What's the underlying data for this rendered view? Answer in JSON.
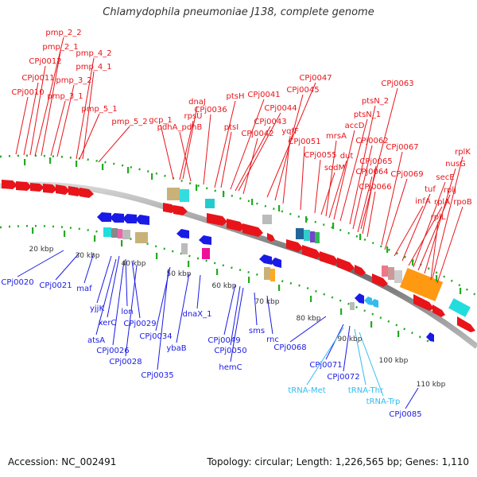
{
  "title": "Chlamydophila pneumoniae J138, complete genome",
  "footer": {
    "accession": "Accession: NC_002491",
    "summary": "Topology: circular; Length: 1,226,565 bp; Genes: 1,110"
  },
  "colors": {
    "forward": "#e8141a",
    "reverse": "#1a1ae6",
    "trna": "#33bbee",
    "axis": "#888888",
    "tick": "#22aa22"
  },
  "scale_labels": [
    "20 kbp",
    "30 kbp",
    "40 kbp",
    "50 kbp",
    "60 kbp",
    "70 kbp",
    "80 kbp",
    "90 kbp",
    "100 kbp",
    "110 kbp"
  ],
  "forward_labels": [
    "pmp_2_2",
    "pmp_2_1",
    "pmp_4_2",
    "CPj0012",
    "pmp_4_1",
    "CPj0011",
    "pmp_3_2",
    "CPj0010",
    "pmp_3_1",
    "pmp_5_1",
    "pmp_5_2",
    "gcp_1",
    "dnaJ",
    "rpsU",
    "pdhA_pdhB",
    "CPj0036",
    "ptsH",
    "ptsI",
    "CPj0041",
    "CPj0044",
    "CPj0043",
    "CPj0042",
    "CPj0047",
    "CPj0045",
    "yqfF",
    "CPj0051",
    "CPj0055",
    "sodM",
    "mrsA",
    "accD",
    "dut",
    "ptsN_1",
    "ptsN_2",
    "CPj0063",
    "CPj0062",
    "CPj0064",
    "CPj0065",
    "CPj0066",
    "CPj0067",
    "CPj0069",
    "infA",
    "tuf",
    "rplA",
    "secE",
    "rplJ",
    "nusG",
    "rplK",
    "rpoB",
    "rplL"
  ],
  "reverse_labels": [
    "CPj0020",
    "CPj0021",
    "maf",
    "yjjK",
    "xerC",
    "atsA",
    "lon",
    "CPj0029",
    "CPj0026",
    "CPj0028",
    "CPj0034",
    "CPj0035",
    "ybaB",
    "dnaX_1",
    "CPj0049",
    "CPj0050",
    "hemC",
    "sms",
    "rnc",
    "CPj0068",
    "CPj0071",
    "CPj0072",
    "CPj0085"
  ],
  "trna_labels": [
    "tRNA-Met",
    "tRNA-Thr",
    "tRNA-Trp"
  ]
}
